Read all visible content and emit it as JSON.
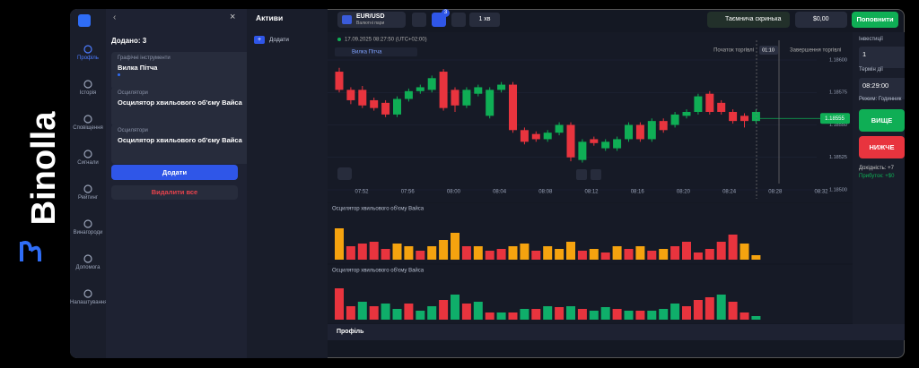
{
  "brand": "Binolla",
  "nav": [
    "Профіль",
    "Історія",
    "Сповіщення",
    "Сигнали",
    "Рейтинг",
    "Винагороди",
    "Допомога",
    "Налаштування"
  ],
  "panel": {
    "added": "Додано: 3",
    "items": [
      {
        "category": "Графічні інструменти",
        "name": "Вилка Пітча"
      },
      {
        "category": "Осцилятори",
        "name": "Осцилятор хвильового об'єму Вайса"
      },
      {
        "category": "Осцилятори",
        "name": "Осцилятор хвильового об'єму Вайса"
      }
    ],
    "add_button": "Додати",
    "delete_button": "Видалити все"
  },
  "assets": {
    "title": "Активи",
    "add": "Додати"
  },
  "topbar": {
    "pair": "EUR/USD",
    "pair_type": "Валютні пари",
    "badge": "3",
    "timeframe": "1 хв",
    "mystery_box": "Таємнича скринька",
    "balance": "$0,00",
    "deposit": "Поповнити"
  },
  "chart_data": [
    {
      "type": "candlestick",
      "datetime": "17.09.2025 08:27:50 (UTC+02:00)",
      "tool_label": "Вилка Пітча",
      "trade_start": "Початок торгівлі",
      "timer": "01:10",
      "trade_end": "Завершення торгівлі",
      "up_color": "#0fae55",
      "down_color": "#e8343e",
      "ylim": [
        1.185,
        1.186
      ],
      "yticks": [
        {
          "value": 1.186,
          "label": "1.18600"
        },
        {
          "value": 1.18575,
          "label": "1.18575"
        },
        {
          "value": 1.1855,
          "label": "1.18550"
        },
        {
          "value": 1.18525,
          "label": "1.18525"
        },
        {
          "value": 1.185,
          "label": "1.18500"
        }
      ],
      "current_price": {
        "value": 1.18555,
        "label": "1.18555"
      },
      "xticks": [
        "07:52",
        "07:56",
        "08:00",
        "08:04",
        "08:08",
        "08:12",
        "08:16",
        "08:20",
        "08:24",
        "08:28",
        "08:32"
      ],
      "candles": [
        {
          "open": 1.18591,
          "high": 1.18594,
          "low": 1.18575,
          "close": 1.18577
        },
        {
          "open": 1.18577,
          "high": 1.18579,
          "low": 1.18566,
          "close": 1.18569
        },
        {
          "open": 1.18577,
          "high": 1.1858,
          "low": 1.18563,
          "close": 1.18565
        },
        {
          "open": 1.18569,
          "high": 1.18571,
          "low": 1.18561,
          "close": 1.18563
        },
        {
          "open": 1.18567,
          "high": 1.18569,
          "low": 1.18556,
          "close": 1.18558
        },
        {
          "open": 1.18558,
          "high": 1.18572,
          "low": 1.18556,
          "close": 1.1857
        },
        {
          "open": 1.1857,
          "high": 1.18578,
          "low": 1.18568,
          "close": 1.18576
        },
        {
          "open": 1.18576,
          "high": 1.18581,
          "low": 1.18574,
          "close": 1.18579
        },
        {
          "open": 1.18577,
          "high": 1.18588,
          "low": 1.18575,
          "close": 1.18586
        },
        {
          "open": 1.18591,
          "high": 1.18593,
          "low": 1.18561,
          "close": 1.18563
        },
        {
          "open": 1.18577,
          "high": 1.18579,
          "low": 1.1856,
          "close": 1.18565
        },
        {
          "open": 1.18565,
          "high": 1.18579,
          "low": 1.18563,
          "close": 1.18577
        },
        {
          "open": 1.18574,
          "high": 1.18581,
          "low": 1.18572,
          "close": 1.18579
        },
        {
          "open": 1.18557,
          "high": 1.18579,
          "low": 1.18555,
          "close": 1.18577
        },
        {
          "open": 1.18577,
          "high": 1.18583,
          "low": 1.18575,
          "close": 1.18581
        },
        {
          "open": 1.18581,
          "high": 1.18583,
          "low": 1.18544,
          "close": 1.18546
        },
        {
          "open": 1.18546,
          "high": 1.18548,
          "low": 1.18535,
          "close": 1.18537
        },
        {
          "open": 1.18543,
          "high": 1.18545,
          "low": 1.18537,
          "close": 1.18539
        },
        {
          "open": 1.18539,
          "high": 1.18546,
          "low": 1.18537,
          "close": 1.18544
        },
        {
          "open": 1.18544,
          "high": 1.18552,
          "low": 1.18542,
          "close": 1.1855
        },
        {
          "open": 1.1855,
          "high": 1.18552,
          "low": 1.18522,
          "close": 1.18525
        },
        {
          "open": 1.18523,
          "high": 1.18539,
          "low": 1.18521,
          "close": 1.18537
        },
        {
          "open": 1.18539,
          "high": 1.18541,
          "low": 1.18534,
          "close": 1.18536
        },
        {
          "open": 1.18532,
          "high": 1.18539,
          "low": 1.1853,
          "close": 1.18537
        },
        {
          "open": 1.18532,
          "high": 1.18541,
          "low": 1.1853,
          "close": 1.18539
        },
        {
          "open": 1.18539,
          "high": 1.18552,
          "low": 1.18537,
          "close": 1.1855
        },
        {
          "open": 1.1855,
          "high": 1.18552,
          "low": 1.18537,
          "close": 1.18539
        },
        {
          "open": 1.18539,
          "high": 1.18555,
          "low": 1.18537,
          "close": 1.18553
        },
        {
          "open": 1.18553,
          "high": 1.18555,
          "low": 1.18544,
          "close": 1.18546
        },
        {
          "open": 1.1855,
          "high": 1.1856,
          "low": 1.18548,
          "close": 1.18558
        },
        {
          "open": 1.18557,
          "high": 1.18562,
          "low": 1.18555,
          "close": 1.1856
        },
        {
          "open": 1.1856,
          "high": 1.18574,
          "low": 1.18558,
          "close": 1.18572
        },
        {
          "open": 1.18574,
          "high": 1.18576,
          "low": 1.18558,
          "close": 1.1856
        },
        {
          "open": 1.18567,
          "high": 1.18569,
          "low": 1.18558,
          "close": 1.1856
        },
        {
          "open": 1.1856,
          "high": 1.18562,
          "low": 1.18551,
          "close": 1.18553
        },
        {
          "open": 1.18557,
          "high": 1.18559,
          "low": 1.18548,
          "close": 1.18553
        },
        {
          "open": 1.18553,
          "high": 1.18562,
          "low": 1.18551,
          "close": 1.1856
        }
      ]
    },
    {
      "type": "bar",
      "title": "Осцилятор хвильового об'єму Вайса",
      "values": [
        35,
        15,
        18,
        20,
        12,
        18,
        15,
        10,
        15,
        22,
        30,
        15,
        15,
        10,
        12,
        15,
        18,
        10,
        15,
        12,
        20,
        10,
        12,
        8,
        15,
        12,
        15,
        10,
        12,
        15,
        20,
        8,
        12,
        20,
        28,
        18,
        5
      ],
      "colors": [
        "#f5a30f",
        "#e8343e",
        "#e8343e",
        "#e8343e",
        "#e8343e",
        "#f5a30f",
        "#f5a30f",
        "#e8343e",
        "#f5a30f",
        "#f5a30f",
        "#f5a30f",
        "#e8343e",
        "#f5a30f",
        "#e8343e",
        "#e8343e",
        "#f5a30f",
        "#f5a30f",
        "#e8343e",
        "#f5a30f",
        "#f5a30f",
        "#f5a30f",
        "#e8343e",
        "#f5a30f",
        "#e8343e",
        "#f5a30f",
        "#e8343e",
        "#f5a30f",
        "#e8343e",
        "#f5a30f",
        "#e8343e",
        "#e8343e",
        "#e8343e",
        "#e8343e",
        "#e8343e",
        "#e8343e",
        "#f5a30f",
        "#f5a30f"
      ]
    },
    {
      "type": "bar",
      "title": "Осцилятор хвильового об'єму Вайса",
      "values": [
        35,
        15,
        20,
        15,
        18,
        12,
        18,
        10,
        15,
        22,
        28,
        18,
        20,
        8,
        8,
        8,
        12,
        12,
        15,
        14,
        15,
        12,
        10,
        14,
        12,
        10,
        10,
        10,
        12,
        18,
        15,
        22,
        25,
        28,
        20,
        8,
        4
      ],
      "colors": [
        "#e8343e",
        "#e8343e",
        "#0fae6a",
        "#e8343e",
        "#0fae6a",
        "#0fae6a",
        "#e8343e",
        "#0fae6a",
        "#0fae6a",
        "#e8343e",
        "#0fae6a",
        "#e8343e",
        "#0fae6a",
        "#e8343e",
        "#0fae6a",
        "#e8343e",
        "#0fae6a",
        "#e8343e",
        "#0fae6a",
        "#e8343e",
        "#0fae6a",
        "#e8343e",
        "#0fae6a",
        "#0fae6a",
        "#e8343e",
        "#0fae6a",
        "#e8343e",
        "#0fae6a",
        "#0fae6a",
        "#0fae6a",
        "#e8343e",
        "#e8343e",
        "#e8343e",
        "#0fae6a",
        "#e8343e",
        "#e8343e",
        "#0fae6a"
      ]
    }
  ],
  "bottom_tab": "Профіль",
  "trade": {
    "investment_label": "Інвестиції",
    "investment": "1",
    "expiry_label": "Термін дії",
    "expiry": "08:29:00",
    "mode": "Режим: Годинник",
    "up": "ВИЩЕ",
    "down": "НИЖЧЕ",
    "yield": "Дохідність: +7",
    "profit": "Прибуток: +$0"
  }
}
